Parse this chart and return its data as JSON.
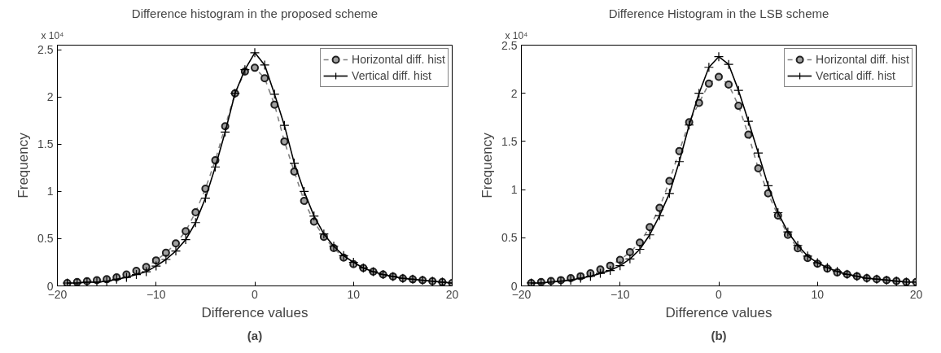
{
  "chart_data": [
    {
      "type": "line",
      "title": "Difference histogram in the proposed scheme",
      "xlabel": "Difference values",
      "ylabel": "Frequency",
      "annotations": [
        "x 10⁴",
        "(a)"
      ],
      "xlim": [
        -20,
        20
      ],
      "xticks": [
        -20,
        -10,
        0,
        10,
        20
      ],
      "ylim": [
        0,
        2.55
      ],
      "yticks": [
        0,
        0.5,
        1,
        1.5,
        2,
        2.5
      ],
      "grid": false,
      "legend": "top right",
      "x": [
        -19,
        -18,
        -17,
        -16,
        -15,
        -14,
        -13,
        -12,
        -11,
        -10,
        -9,
        -8,
        -7,
        -6,
        -5,
        -4,
        -3,
        -2,
        -1,
        0,
        1,
        2,
        3,
        4,
        5,
        6,
        7,
        8,
        9,
        10,
        11,
        12,
        13,
        14,
        15,
        16,
        17,
        18,
        19,
        20
      ],
      "series": [
        {
          "name": "Horizontal diff. hist",
          "color": "#808080",
          "marker": "circle",
          "line_style": "dashed",
          "values": [
            0.03,
            0.04,
            0.05,
            0.06,
            0.07,
            0.09,
            0.12,
            0.16,
            0.2,
            0.27,
            0.35,
            0.45,
            0.58,
            0.78,
            1.03,
            1.33,
            1.69,
            2.04,
            2.27,
            2.31,
            2.2,
            1.92,
            1.53,
            1.21,
            0.9,
            0.68,
            0.52,
            0.4,
            0.3,
            0.23,
            0.19,
            0.15,
            0.12,
            0.1,
            0.08,
            0.07,
            0.06,
            0.05,
            0.04,
            0.03
          ]
        },
        {
          "name": "Vertical diff. hist",
          "color": "#000000",
          "marker": "cross",
          "line_style": "solid",
          "values": [
            0.03,
            0.03,
            0.04,
            0.04,
            0.05,
            0.07,
            0.09,
            0.12,
            0.15,
            0.21,
            0.28,
            0.37,
            0.49,
            0.67,
            0.93,
            1.26,
            1.63,
            2.04,
            2.29,
            2.47,
            2.34,
            2.03,
            1.7,
            1.3,
            1.0,
            0.74,
            0.55,
            0.42,
            0.32,
            0.25,
            0.19,
            0.15,
            0.12,
            0.1,
            0.08,
            0.07,
            0.06,
            0.05,
            0.04,
            0.03
          ]
        }
      ]
    },
    {
      "type": "line",
      "title": "Difference Histogram in the LSB scheme",
      "xlabel": "Difference values",
      "ylabel": "Frequency",
      "annotations": [
        "x 10⁴",
        "(b)"
      ],
      "xlim": [
        -20,
        20
      ],
      "xticks": [
        -20,
        -10,
        0,
        10,
        20
      ],
      "ylim": [
        0,
        2.5
      ],
      "yticks": [
        0,
        0.5,
        1,
        1.5,
        2,
        2.5
      ],
      "grid": false,
      "legend": "top right",
      "x": [
        -19,
        -18,
        -17,
        -16,
        -15,
        -14,
        -13,
        -12,
        -11,
        -10,
        -9,
        -8,
        -7,
        -6,
        -5,
        -4,
        -3,
        -2,
        -1,
        0,
        1,
        2,
        3,
        4,
        5,
        6,
        7,
        8,
        9,
        10,
        11,
        12,
        13,
        14,
        15,
        16,
        17,
        18,
        19,
        20
      ],
      "series": [
        {
          "name": "Horizontal diff. hist",
          "color": "#808080",
          "marker": "circle",
          "line_style": "dashed",
          "values": [
            0.03,
            0.04,
            0.05,
            0.06,
            0.08,
            0.1,
            0.13,
            0.17,
            0.21,
            0.27,
            0.35,
            0.45,
            0.61,
            0.81,
            1.09,
            1.4,
            1.7,
            1.9,
            2.1,
            2.17,
            2.09,
            1.87,
            1.57,
            1.22,
            0.96,
            0.73,
            0.53,
            0.39,
            0.29,
            0.23,
            0.18,
            0.14,
            0.12,
            0.1,
            0.08,
            0.07,
            0.06,
            0.05,
            0.04,
            0.04
          ]
        },
        {
          "name": "Vertical diff. hist",
          "color": "#000000",
          "marker": "cross",
          "line_style": "solid",
          "values": [
            0.03,
            0.03,
            0.04,
            0.05,
            0.06,
            0.08,
            0.1,
            0.13,
            0.16,
            0.21,
            0.28,
            0.38,
            0.53,
            0.73,
            0.96,
            1.29,
            1.67,
            2.0,
            2.27,
            2.38,
            2.3,
            2.03,
            1.71,
            1.38,
            1.04,
            0.76,
            0.56,
            0.42,
            0.31,
            0.24,
            0.19,
            0.15,
            0.12,
            0.1,
            0.08,
            0.07,
            0.06,
            0.05,
            0.04,
            0.04
          ]
        }
      ]
    }
  ]
}
